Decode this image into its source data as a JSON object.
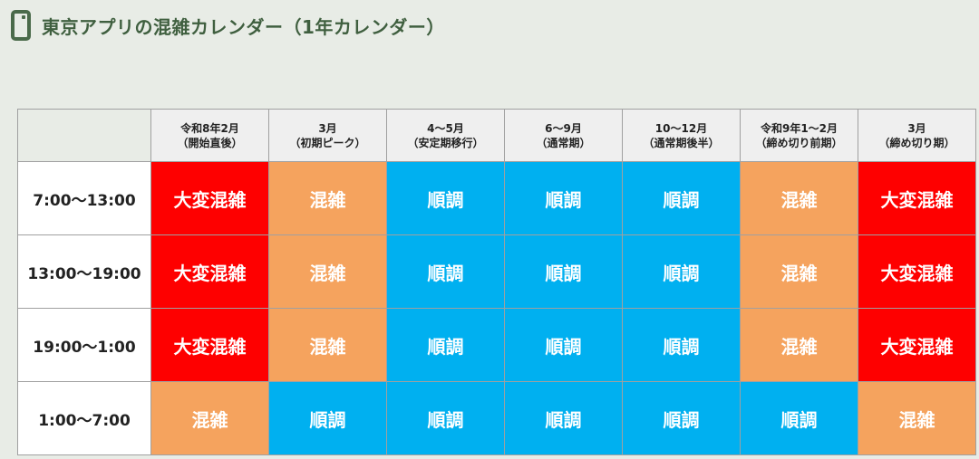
{
  "title": "東京アプリの混雑カレンダー（1年カレンダー）",
  "icons": {
    "header": "phone-icon"
  },
  "colors": {
    "very_busy": "#fe0000",
    "busy": "#f5a35e",
    "smooth": "#00b0f0",
    "title": "#3f5f3f",
    "background": "#e8ece6"
  },
  "columns": [
    {
      "line1": "令和8年2月",
      "line2": "（開始直後）"
    },
    {
      "line1": "3月",
      "line2": "（初期ピーク）"
    },
    {
      "line1": "4～5月",
      "line2": "（安定期移行）"
    },
    {
      "line1": "6～9月",
      "line2": "（通常期）"
    },
    {
      "line1": "10～12月",
      "line2": "（通常期後半）"
    },
    {
      "line1": "令和9年1～2月",
      "line2": "（締め切り前期）"
    },
    {
      "line1": "3月",
      "line2": "（締め切り期）"
    }
  ],
  "rows": [
    {
      "time": "7:00～13:00",
      "cells": [
        "大変混雑",
        "混雑",
        "順調",
        "順調",
        "順調",
        "混雑",
        "大変混雑"
      ]
    },
    {
      "time": "13:00～19:00",
      "cells": [
        "大変混雑",
        "混雑",
        "順調",
        "順調",
        "順調",
        "混雑",
        "大変混雑"
      ]
    },
    {
      "time": "19:00～1:00",
      "cells": [
        "大変混雑",
        "混雑",
        "順調",
        "順調",
        "順調",
        "混雑",
        "大変混雑"
      ]
    },
    {
      "time": "1:00～7:00",
      "cells": [
        "混雑",
        "順調",
        "順調",
        "順調",
        "順調",
        "順調",
        "混雑"
      ]
    }
  ]
}
